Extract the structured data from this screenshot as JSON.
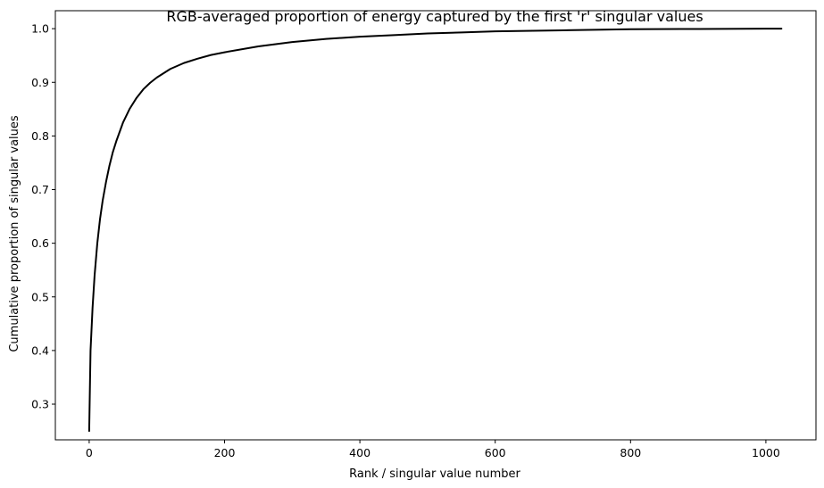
{
  "chart_data": {
    "type": "line",
    "title": "RGB-averaged proportion of energy captured by the first 'r' singular values",
    "xlabel": "Rank / singular value number",
    "ylabel": "Cumulative proportion of singular values",
    "xlim": [
      -50,
      1074
    ],
    "ylim": [
      0.2335,
      1.0335
    ],
    "xticks": [
      0,
      200,
      400,
      600,
      800,
      1000
    ],
    "xtick_labels": [
      "0",
      "200",
      "400",
      "600",
      "800",
      "1000"
    ],
    "yticks": [
      0.3,
      0.4,
      0.5,
      0.6,
      0.7,
      0.8,
      0.9,
      1.0
    ],
    "ytick_labels": [
      "0.3",
      "0.4",
      "0.5",
      "0.6",
      "0.7",
      "0.8",
      "0.9",
      "1.0"
    ],
    "grid": false,
    "series": [
      {
        "color": "#000000",
        "x": [
          0,
          2,
          5,
          8,
          12,
          16,
          20,
          25,
          30,
          35,
          40,
          50,
          60,
          70,
          80,
          90,
          100,
          120,
          140,
          160,
          180,
          200,
          250,
          300,
          350,
          400,
          450,
          500,
          550,
          600,
          700,
          800,
          900,
          1000,
          1023
        ],
        "y": [
          0.25,
          0.4,
          0.48,
          0.54,
          0.6,
          0.645,
          0.68,
          0.715,
          0.745,
          0.77,
          0.79,
          0.825,
          0.851,
          0.871,
          0.887,
          0.899,
          0.909,
          0.925,
          0.936,
          0.944,
          0.951,
          0.956,
          0.967,
          0.975,
          0.981,
          0.985,
          0.988,
          0.991,
          0.993,
          0.995,
          0.997,
          0.999,
          0.9995,
          1.0,
          1.0
        ]
      }
    ]
  }
}
